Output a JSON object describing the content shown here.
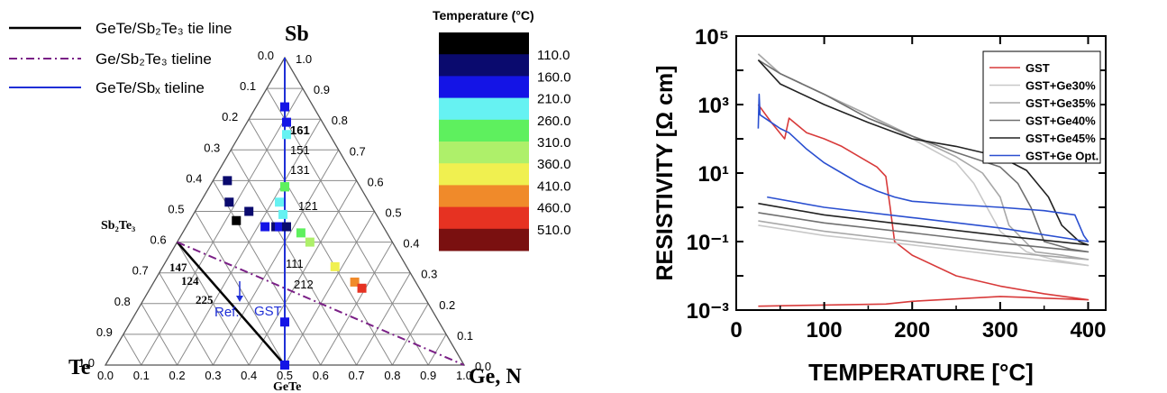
{
  "chart_data": [
    {
      "type": "scatter",
      "subtype": "ternary",
      "vertex_labels": {
        "top": "Sb",
        "right": "Ge, N",
        "left": "Te"
      },
      "compound_labels": {
        "sb2te3": "Sb₂Te₃",
        "gete": "GeTe"
      },
      "axis_ticks": [
        "0.0",
        "0.1",
        "0.2",
        "0.3",
        "0.4",
        "0.5",
        "0.6",
        "0.7",
        "0.8",
        "0.9",
        "1.0"
      ],
      "legend": [
        {
          "label": "GeTe/Sb₂Te₃ tie line",
          "color": "#000000",
          "style": "solid"
        },
        {
          "label": "Ge/Sb₂Te₃ tieline",
          "color": "#7a1f86",
          "style": "dashdot"
        },
        {
          "label": "GeTe/Sbₓ tieline",
          "color": "#1f2fd6",
          "style": "solid"
        }
      ],
      "colorbar": {
        "title": "Temperature (°C)",
        "colors": [
          "#000000",
          "#0a0a6e",
          "#1414e6",
          "#66f2f2",
          "#5ef05e",
          "#aef06a",
          "#f0f050",
          "#f08a2a",
          "#e63222",
          "#7a1010"
        ],
        "labels": [
          "110.0",
          "160.0",
          "210.0",
          "260.0",
          "310.0",
          "360.0",
          "410.0",
          "460.0",
          "510.0"
        ]
      },
      "annotations": [
        "161",
        "151",
        "131",
        "121",
        "111",
        "212",
        "147",
        "124",
        "225",
        "Ref.",
        "GST"
      ],
      "points": [
        {
          "sb": 0.6,
          "ge": 0.04,
          "color": "#0a0a6e"
        },
        {
          "sb": 0.53,
          "ge": 0.08,
          "color": "#0a0a6e"
        },
        {
          "sb": 0.47,
          "ge": 0.13,
          "color": "#000000"
        },
        {
          "sb": 0.5,
          "ge": 0.15,
          "color": "#0a0a6e"
        },
        {
          "sb": 0.45,
          "ge": 0.22,
          "color": "#1414e6"
        },
        {
          "sb": 0.45,
          "ge": 0.25,
          "color": "#0a0a6e"
        },
        {
          "sb": 0.45,
          "ge": 0.26,
          "color": "#1414e6"
        },
        {
          "sb": 0.45,
          "ge": 0.28,
          "color": "#0a0a6e"
        },
        {
          "sb": 0.53,
          "ge": 0.22,
          "color": "#66f2f2"
        },
        {
          "sb": 0.49,
          "ge": 0.25,
          "color": "#66f2f2"
        },
        {
          "sb": 0.43,
          "ge": 0.33,
          "color": "#5ef05e"
        },
        {
          "sb": 0.4,
          "ge": 0.37,
          "color": "#aef06a"
        },
        {
          "sb": 0.32,
          "ge": 0.48,
          "color": "#f0f050"
        },
        {
          "sb": 0.27,
          "ge": 0.56,
          "color": "#f08a2a"
        },
        {
          "sb": 0.25,
          "ge": 0.59,
          "color": "#e63222"
        },
        {
          "sb": 0.84,
          "ge": 0.08,
          "color": "#1414e6"
        },
        {
          "sb": 0.79,
          "ge": 0.11,
          "color": "#1414e6"
        },
        {
          "sb": 0.75,
          "ge": 0.13,
          "color": "#66f2f2"
        },
        {
          "sb": 0.58,
          "ge": 0.21,
          "color": "#5ef05e"
        },
        {
          "sb": 0.58,
          "ge": 0.21,
          "color": "#5ef05e"
        },
        {
          "sb": 0.58,
          "ge": 0.21,
          "color": "#5ef05e"
        },
        {
          "sb": 0.14,
          "ge": 0.43,
          "color": "#1414e6"
        },
        {
          "sb": 0.0,
          "ge": 0.5,
          "color": "#1414e6"
        }
      ]
    },
    {
      "type": "line",
      "xlabel": "TEMPERATURE [°C]",
      "ylabel": "RESISTIVITY [Ω cm]",
      "xlim": [
        0,
        420
      ],
      "ylim": [
        0.001,
        100000
      ],
      "yscale": "log",
      "xticks": [
        "0",
        "100",
        "200",
        "300",
        "400"
      ],
      "yticks": [
        "10⁻³",
        "10⁻¹",
        "10¹",
        "10³",
        "10⁵"
      ],
      "legend_position": "top-right",
      "series": [
        {
          "name": "GST",
          "color": "#d83a3a",
          "x": [
            25,
            40,
            55,
            60,
            80,
            100,
            120,
            140,
            160,
            170,
            175,
            180,
            200,
            250,
            300,
            350,
            400,
            400,
            300,
            200,
            170,
            100,
            25
          ],
          "y": [
            1000,
            300,
            100,
            400,
            150,
            100,
            60,
            30,
            15,
            8,
            1,
            0.1,
            0.04,
            0.01,
            0.005,
            0.003,
            0.002,
            0.002,
            0.0025,
            0.0018,
            0.0015,
            0.0014,
            0.0013
          ]
        },
        {
          "name": "GST+Ge30%",
          "color": "#c8c8c8",
          "x": [
            25,
            50,
            100,
            150,
            200,
            250,
            270,
            285,
            300,
            330,
            360,
            400,
            400,
            300,
            200,
            100,
            25
          ],
          "y": [
            30000,
            8000,
            2000,
            500,
            100,
            20,
            5,
            1,
            0.2,
            0.05,
            0.03,
            0.02,
            0.02,
            0.04,
            0.08,
            0.15,
            0.3
          ]
        },
        {
          "name": "GST+Ge35%",
          "color": "#a8a8a8",
          "x": [
            25,
            50,
            100,
            150,
            200,
            250,
            280,
            300,
            310,
            340,
            370,
            400,
            400,
            300,
            200,
            100,
            25
          ],
          "y": [
            30000,
            8000,
            2000,
            500,
            120,
            30,
            10,
            2,
            0.3,
            0.05,
            0.04,
            0.03,
            0.03,
            0.05,
            0.1,
            0.2,
            0.4
          ]
        },
        {
          "name": "GST+Ge40%",
          "color": "#707070",
          "x": [
            25,
            50,
            100,
            150,
            200,
            250,
            300,
            320,
            335,
            350,
            380,
            400,
            400,
            300,
            200,
            100,
            25
          ],
          "y": [
            20000,
            8000,
            2000,
            400,
            120,
            40,
            15,
            5,
            1,
            0.1,
            0.06,
            0.05,
            0.05,
            0.09,
            0.18,
            0.35,
            0.7
          ]
        },
        {
          "name": "GST+Ge45%",
          "color": "#222222",
          "x": [
            25,
            50,
            100,
            150,
            200,
            250,
            300,
            330,
            355,
            370,
            390,
            400,
            400,
            300,
            200,
            100,
            25
          ],
          "y": [
            20000,
            4000,
            1000,
            300,
            100,
            60,
            30,
            12,
            2,
            0.3,
            0.1,
            0.08,
            0.08,
            0.15,
            0.3,
            0.6,
            1.3
          ]
        },
        {
          "name": "GST+Ge Opt.",
          "color": "#2a4fd0",
          "x": [
            25,
            26,
            27,
            40,
            50,
            60,
            80,
            100,
            120,
            140,
            160,
            180,
            200,
            250,
            300,
            350,
            385,
            395,
            400,
            400,
            300,
            200,
            100,
            35
          ],
          "y": [
            200,
            2000,
            500,
            300,
            200,
            150,
            50,
            20,
            10,
            5,
            3,
            2,
            1.5,
            1.2,
            1,
            0.8,
            0.6,
            0.15,
            0.1,
            0.1,
            0.25,
            0.5,
            1,
            2
          ]
        }
      ]
    }
  ]
}
